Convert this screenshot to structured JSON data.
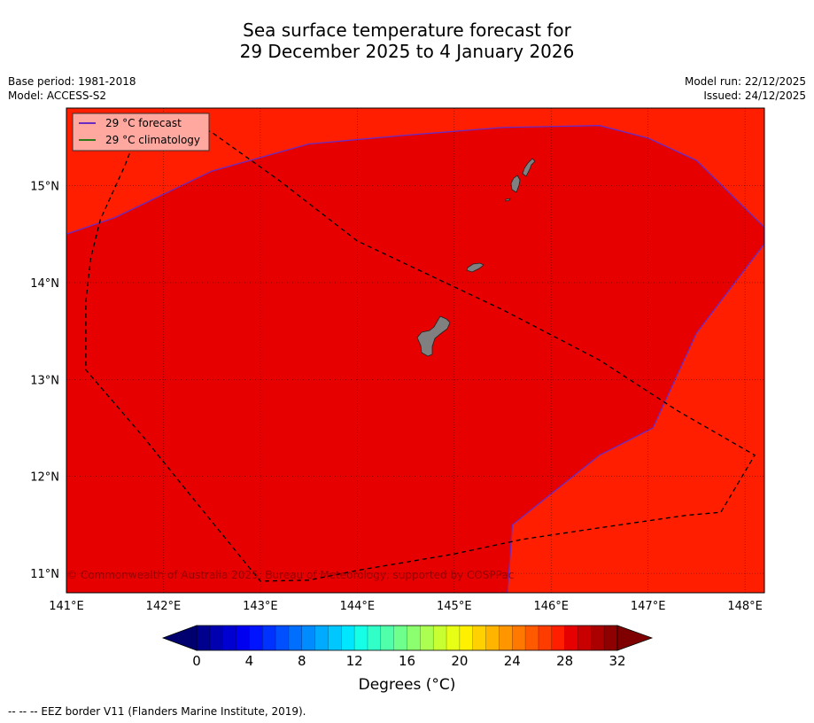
{
  "title_line1": "Sea surface temperature forecast for",
  "title_line2": "29 December 2025 to 4 January 2026",
  "base_period": "Base period: 1981-2018",
  "model": "Model: ACCESS-S2",
  "model_run": "Model run: 22/12/2025",
  "issued": "Issued: 24/12/2025",
  "legend": {
    "forecast_label": "29 °C  forecast",
    "climatology_label": "29 °C  climatology",
    "forecast_color": "#6a2bc4",
    "climatology_color": "#2c7a1a"
  },
  "copyright": "© Commonwealth of Australia 2025, Bureau of Meteorology, supported by COSPPac",
  "map": {
    "lon_labels": [
      "141°E",
      "142°E",
      "143°E",
      "144°E",
      "145°E",
      "146°E",
      "147°E",
      "148°E"
    ],
    "lat_labels": [
      "15°N",
      "14°N",
      "13°N",
      "12°N",
      "11°N"
    ],
    "lon_values": [
      141,
      142,
      143,
      144,
      145,
      146,
      147,
      148
    ],
    "lat_values": [
      15,
      14,
      13,
      12,
      11
    ],
    "lon_range": [
      141,
      148.2
    ],
    "lat_range": [
      10.8,
      15.8
    ],
    "outer_color": "#ff1f00",
    "inner_color": "#e60000",
    "land_color": "#808080",
    "forecast_contour_29C": [
      [
        141,
        14.5
      ],
      [
        141.5,
        14.67
      ],
      [
        142.5,
        15.15
      ],
      [
        143.5,
        15.43
      ],
      [
        144.5,
        15.52
      ],
      [
        145.5,
        15.6
      ],
      [
        146.5,
        15.62
      ],
      [
        147,
        15.49
      ],
      [
        147.5,
        15.26
      ],
      [
        148.2,
        14.57
      ],
      [
        148.2,
        14.4
      ],
      [
        147.5,
        13.48
      ],
      [
        147.05,
        12.5
      ],
      [
        146.5,
        12.22
      ],
      [
        145.6,
        11.5
      ],
      [
        145.55,
        10.8
      ]
    ],
    "eez_border": [
      [
        141.8,
        15.72
      ],
      [
        142.25,
        15.65
      ],
      [
        142.5,
        15.55
      ],
      [
        143.2,
        15.05
      ],
      [
        144,
        14.43
      ],
      [
        144.8,
        14.05
      ],
      [
        145.5,
        13.72
      ],
      [
        146.5,
        13.2
      ],
      [
        147.3,
        12.68
      ],
      [
        148.1,
        12.22
      ],
      [
        147.75,
        11.63
      ],
      [
        147.4,
        11.6
      ],
      [
        146.5,
        11.47
      ],
      [
        145.7,
        11.35
      ],
      [
        145,
        11.2
      ],
      [
        144,
        11.03
      ],
      [
        143.5,
        10.93
      ],
      [
        143,
        10.92
      ],
      [
        142.3,
        11.78
      ],
      [
        141.8,
        12.4
      ],
      [
        141.2,
        13.1
      ],
      [
        141.2,
        13.5
      ],
      [
        141.2,
        13.8
      ],
      [
        141.25,
        14.25
      ],
      [
        141.35,
        14.65
      ],
      [
        141.6,
        15.2
      ],
      [
        141.8,
        15.72
      ]
    ]
  },
  "colorbar": {
    "ticks": [
      "0",
      "4",
      "8",
      "12",
      "16",
      "20",
      "24",
      "28",
      "32"
    ],
    "tick_values": [
      0,
      4,
      8,
      12,
      16,
      20,
      24,
      28,
      32
    ],
    "label": "Degrees ( $^{\\circ}$C)",
    "label_display": "Degrees (°C)",
    "min": 0,
    "max": 32,
    "step": 1,
    "colors": [
      "#00008f",
      "#0000b0",
      "#0000d1",
      "#0000f0",
      "#0014ff",
      "#0032ff",
      "#0050ff",
      "#006eff",
      "#008cff",
      "#00aaff",
      "#00c8ff",
      "#00e6ff",
      "#14ffe6",
      "#32ffc8",
      "#50ffaa",
      "#6eff8c",
      "#8cff6e",
      "#aaff50",
      "#c8ff32",
      "#e6ff14",
      "#fff000",
      "#ffd100",
      "#ffb400",
      "#ff9600",
      "#ff7800",
      "#ff5a00",
      "#ff3c00",
      "#ff1f00",
      "#e60000",
      "#c80000",
      "#aa0000",
      "#8f0000"
    ],
    "under_color": "#00006e",
    "over_color": "#7f0000"
  },
  "footer": "--  --  -- EEZ border V11 (Flanders Marine Institute, 2019)."
}
